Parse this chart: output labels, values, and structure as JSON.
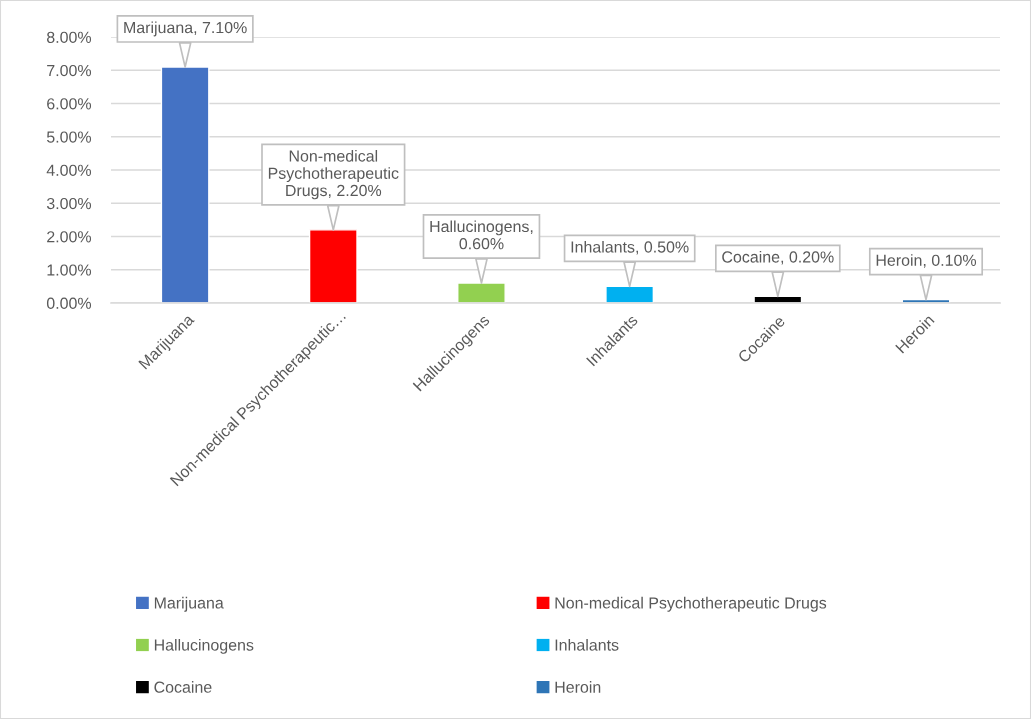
{
  "chart_data": {
    "type": "bar",
    "stacked": true,
    "categories": [
      "Marijuana",
      "Non-medical Psychotherapeutic…",
      "Hallucinogens",
      "Inhalants",
      "Cocaine",
      "Heroin"
    ],
    "series": [
      {
        "name": "Marijuana",
        "color": "#4472c4",
        "values": [
          7.1,
          null,
          null,
          null,
          null,
          null
        ],
        "value_labels": [
          "Marijuana, 7.10%",
          null,
          null,
          null,
          null,
          null
        ]
      },
      {
        "name": "Non-medical Psychotherapeutic Drugs",
        "color": "#ff0000",
        "values": [
          null,
          2.2,
          null,
          null,
          null,
          null
        ],
        "value_labels": [
          null,
          "Non-medical\nPsychotherapeutic\nDrugs, 2.20%",
          null,
          null,
          null,
          null
        ]
      },
      {
        "name": "Hallucinogens",
        "color": "#92d050",
        "values": [
          null,
          null,
          0.6,
          null,
          null,
          null
        ],
        "value_labels": [
          null,
          null,
          "Hallucinogens,\n0.60%",
          null,
          null,
          null
        ]
      },
      {
        "name": "Inhalants",
        "color": "#00b0f0",
        "values": [
          null,
          null,
          null,
          0.5,
          null,
          null
        ],
        "value_labels": [
          null,
          null,
          null,
          "Inhalants, 0.50%",
          null,
          null
        ]
      },
      {
        "name": "Cocaine",
        "color": "#000000",
        "values": [
          null,
          null,
          null,
          null,
          0.2,
          null
        ],
        "value_labels": [
          null,
          null,
          null,
          null,
          "Cocaine, 0.20%",
          null
        ]
      },
      {
        "name": "Heroin",
        "color": "#2e75b6",
        "values": [
          null,
          null,
          null,
          null,
          null,
          0.1
        ],
        "value_labels": [
          null,
          null,
          null,
          null,
          null,
          "Heroin, 0.10%"
        ]
      }
    ],
    "ylim": [
      0,
      8
    ],
    "yticks": [
      {
        "value": 0,
        "label": "0.00%"
      },
      {
        "value": 1,
        "label": "1.00%"
      },
      {
        "value": 2,
        "label": "2.00%"
      },
      {
        "value": 3,
        "label": "3.00%"
      },
      {
        "value": 4,
        "label": "4.00%"
      },
      {
        "value": 5,
        "label": "5.00%"
      },
      {
        "value": 6,
        "label": "6.00%"
      },
      {
        "value": 7,
        "label": "7.00%"
      },
      {
        "value": 8,
        "label": "8.00%"
      }
    ],
    "grid": "y",
    "legend": "bottom"
  }
}
